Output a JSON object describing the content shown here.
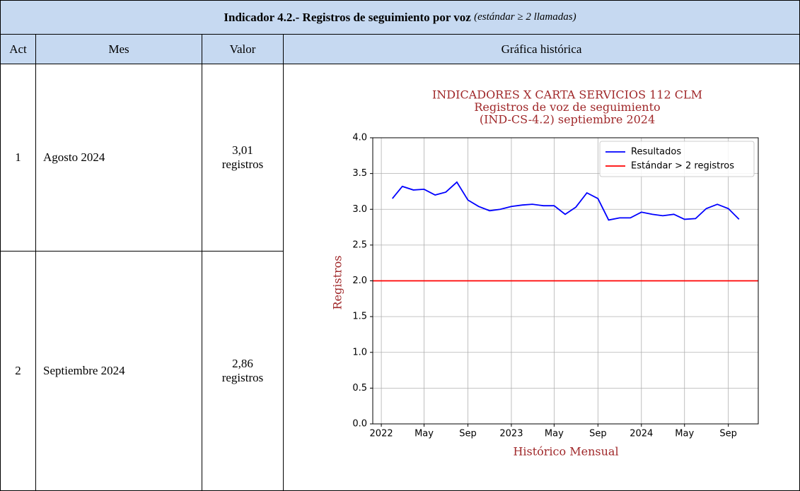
{
  "header": {
    "title": "Indicador 4.2.- Registros de seguimiento por voz",
    "subtitle": "(estándar ≥ 2 llamadas)"
  },
  "table": {
    "columns": [
      "Act",
      "Mes",
      "Valor",
      "Gráfica histórica"
    ],
    "rows": [
      [
        "1",
        "Agosto 2024",
        "3,01 registros"
      ],
      [
        "2",
        "Septiembre 2024",
        "2,86 registros"
      ]
    ]
  },
  "chart_data": {
    "type": "line",
    "title_lines": [
      "INDICADORES X CARTA SERVICIOS 112 CLM",
      "Registros de voz de seguimiento",
      "(IND-CS-4.2) septiembre 2024"
    ],
    "xlabel": "Histórico Mensual",
    "ylabel": "Registros",
    "x": [
      "2022-01",
      "2022-02",
      "2022-03",
      "2022-04",
      "2022-05",
      "2022-06",
      "2022-07",
      "2022-08",
      "2022-09",
      "2022-10",
      "2022-11",
      "2022-12",
      "2023-01",
      "2023-02",
      "2023-03",
      "2023-04",
      "2023-05",
      "2023-06",
      "2023-07",
      "2023-08",
      "2023-09",
      "2023-10",
      "2023-11",
      "2023-12",
      "2024-01",
      "2024-02",
      "2024-03",
      "2024-04",
      "2024-05",
      "2024-06",
      "2024-07",
      "2024-08",
      "2024-09"
    ],
    "series": [
      {
        "name": "Resultados",
        "color": "#0000ff",
        "values": [
          3.15,
          3.32,
          3.27,
          3.28,
          3.2,
          3.24,
          3.38,
          3.13,
          3.04,
          2.98,
          3.0,
          3.04,
          3.06,
          3.07,
          3.05,
          3.05,
          2.93,
          3.03,
          3.23,
          3.15,
          2.85,
          2.88,
          2.88,
          2.96,
          2.93,
          2.91,
          2.93,
          2.86,
          2.87,
          3.01,
          3.07,
          3.01,
          2.86
        ]
      }
    ],
    "reference_line": {
      "name": "Estándar > 2 registros",
      "value": 2,
      "color": "#ff0000"
    },
    "xlim": [
      "2021-12-08",
      "2024-11-24"
    ],
    "xticks": [
      {
        "value": "2022-01-01",
        "label": "2022"
      },
      {
        "value": "2022-05-01",
        "label": "May"
      },
      {
        "value": "2022-09-01",
        "label": "Sep"
      },
      {
        "value": "2023-01-01",
        "label": "2023"
      },
      {
        "value": "2023-05-01",
        "label": "May"
      },
      {
        "value": "2023-09-01",
        "label": "Sep"
      },
      {
        "value": "2024-01-01",
        "label": "2024"
      },
      {
        "value": "2024-05-01",
        "label": "May"
      },
      {
        "value": "2024-09-01",
        "label": "Sep"
      }
    ],
    "ylim": [
      0,
      4
    ],
    "yticks": [
      {
        "value": 0,
        "label": "0.0"
      },
      0.5,
      {
        "value": 1,
        "label": "1.0"
      },
      1.5,
      {
        "value": 2,
        "label": "2.0"
      },
      2.5,
      {
        "value": 3,
        "label": "3.0"
      },
      3.5,
      {
        "value": 4,
        "label": "4.0"
      }
    ],
    "grid": true,
    "legend": "upper right"
  }
}
